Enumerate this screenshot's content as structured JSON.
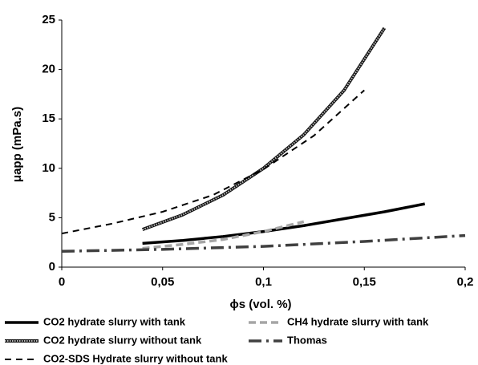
{
  "chart_data": {
    "type": "line",
    "x_label": "ϕs (vol. %)",
    "y_label": "μapp (mPa.s)",
    "xlim": [
      0,
      0.2
    ],
    "xticks": [
      {
        "value": 0,
        "label": "0"
      },
      {
        "value": 0.05,
        "label": "0,05"
      },
      {
        "value": 0.1,
        "label": "0,1"
      },
      {
        "value": 0.15,
        "label": "0,15"
      },
      {
        "value": 0.2,
        "label": "0,2"
      }
    ],
    "ylim": [
      0,
      25
    ],
    "yticks": [
      0,
      5,
      10,
      15,
      20,
      25
    ],
    "grid": false,
    "legend": "bottom",
    "series": [
      {
        "name": "CO2 hydrate slurry with tank",
        "color": "#000000",
        "width": 3.5,
        "dash": "none",
        "x": [
          0.04,
          0.06,
          0.08,
          0.1,
          0.12,
          0.14,
          0.16,
          0.18
        ],
        "values": [
          2.4,
          2.7,
          3.1,
          3.6,
          4.2,
          4.9,
          5.6,
          6.4
        ]
      },
      {
        "name": "CH4 hydrate slurry with tank",
        "color": "#a6a6a6",
        "width": 3.5,
        "dash": "9,5",
        "x": [
          0.04,
          0.06,
          0.08,
          0.1,
          0.12
        ],
        "values": [
          1.9,
          2.3,
          2.8,
          3.6,
          4.6
        ]
      },
      {
        "name": "CO2 hydrate slurry without tank",
        "color": "#555555",
        "width": 4,
        "dash": "none",
        "pattern": "hatched",
        "x": [
          0.04,
          0.06,
          0.08,
          0.1,
          0.12,
          0.14,
          0.16
        ],
        "values": [
          3.8,
          5.3,
          7.3,
          10.0,
          13.4,
          17.9,
          24.2
        ]
      },
      {
        "name": "Thomas",
        "color": "#404040",
        "width": 3.5,
        "dash": "16,6,3,6",
        "x": [
          0,
          0.05,
          0.1,
          0.15,
          0.2
        ],
        "values": [
          1.6,
          1.8,
          2.1,
          2.6,
          3.2
        ]
      },
      {
        "name": "CO2-SDS Hydrate slurry without tank",
        "color": "#000000",
        "width": 2,
        "dash": "8,6",
        "x": [
          0,
          0.025,
          0.05,
          0.075,
          0.1,
          0.125,
          0.15
        ],
        "values": [
          3.4,
          4.4,
          5.6,
          7.3,
          9.9,
          13.3,
          17.9
        ]
      }
    ]
  }
}
